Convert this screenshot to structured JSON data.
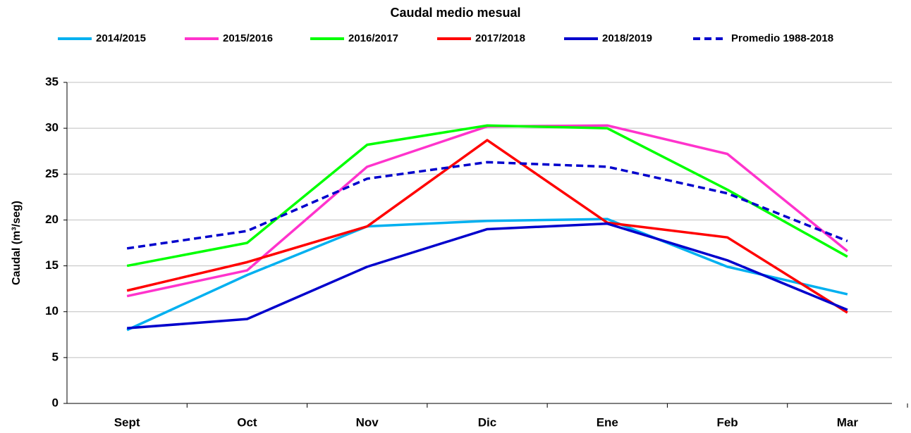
{
  "chart_data": {
    "type": "line",
    "title": "Caudal medio mesual",
    "y_label": "Caudal (m³/seg)",
    "categories": [
      "Sept",
      "Oct",
      "Nov",
      "Dic",
      "Ene",
      "Feb",
      "Mar"
    ],
    "ylim": [
      0,
      35
    ],
    "yticks": [
      0,
      5,
      10,
      15,
      20,
      25,
      30,
      35
    ],
    "grid": true,
    "legend": "top",
    "series": [
      {
        "name": "2014/2015",
        "color": "#00b0f0",
        "dashed": false,
        "values": [
          8.0,
          14.0,
          19.3,
          19.9,
          20.1,
          14.9,
          11.9
        ]
      },
      {
        "name": "2015/2016",
        "color": "#ff33cc",
        "dashed": false,
        "values": [
          11.7,
          14.5,
          25.8,
          30.2,
          30.3,
          27.2,
          16.6
        ]
      },
      {
        "name": "2016/2017",
        "color": "#00ff00",
        "dashed": false,
        "values": [
          15.0,
          17.5,
          28.2,
          30.3,
          30.0,
          23.3,
          16.0
        ]
      },
      {
        "name": "2017/2018",
        "color": "#ff0000",
        "dashed": false,
        "values": [
          12.3,
          15.4,
          19.3,
          28.7,
          19.7,
          18.1,
          9.9
        ]
      },
      {
        "name": "2018/2019",
        "color": "#0000cc",
        "dashed": false,
        "values": [
          8.2,
          9.2,
          14.9,
          19.0,
          19.6,
          15.6,
          10.2
        ]
      },
      {
        "name": "Promedio 1988-2018",
        "color": "#0000cc",
        "dashed": true,
        "values": [
          16.9,
          18.8,
          24.5,
          26.3,
          25.8,
          22.9,
          17.7
        ]
      }
    ]
  }
}
